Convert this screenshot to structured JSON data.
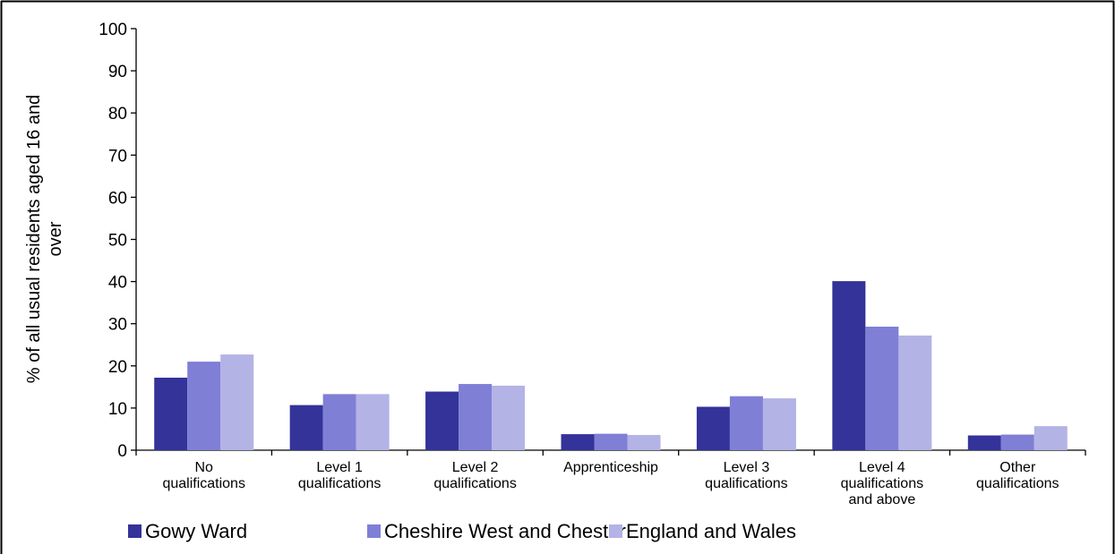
{
  "chart_data": {
    "type": "bar",
    "title": "",
    "xlabel": "",
    "ylabel": [
      "% of all usual residents aged 16 and",
      "over"
    ],
    "ylim": [
      0,
      100
    ],
    "yticks": [
      0,
      10,
      20,
      30,
      40,
      50,
      60,
      70,
      80,
      90,
      100
    ],
    "grid": false,
    "legend_position": "bottom",
    "categories": [
      [
        "No",
        "qualifications"
      ],
      [
        "Level 1",
        "qualifications"
      ],
      [
        "Level 2",
        "qualifications"
      ],
      [
        "Apprenticeship"
      ],
      [
        "Level 3",
        "qualifications"
      ],
      [
        "Level 4",
        "qualifications",
        "and above"
      ],
      [
        "Other",
        "qualifications"
      ]
    ],
    "series": [
      {
        "name": "Gowy Ward",
        "color": "#333399",
        "values": [
          17.2,
          10.7,
          13.9,
          3.8,
          10.3,
          40.1,
          3.5
        ]
      },
      {
        "name": "Cheshire West and Chester",
        "color": "#7f7fd6",
        "values": [
          21.0,
          13.3,
          15.7,
          3.9,
          12.8,
          29.3,
          3.7
        ]
      },
      {
        "name": "England and Wales",
        "color": "#b3b3e6",
        "values": [
          22.7,
          13.3,
          15.3,
          3.6,
          12.3,
          27.2,
          5.7
        ]
      }
    ]
  }
}
